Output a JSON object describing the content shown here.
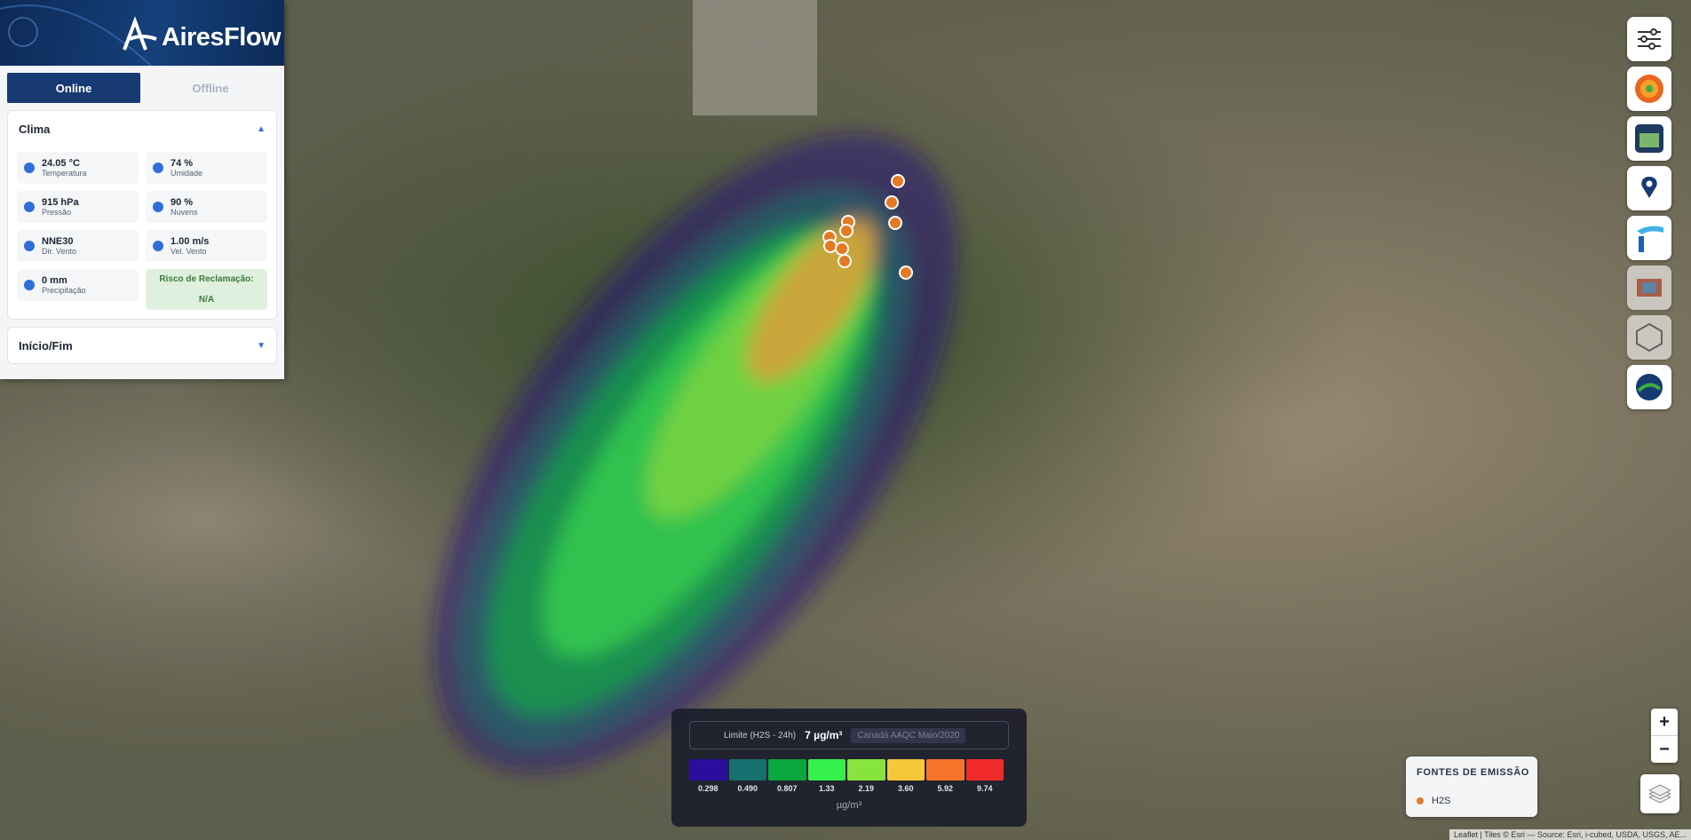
{
  "header": {
    "brand": "AiresFlow"
  },
  "tabs": [
    "Online",
    "Offline"
  ],
  "clima": {
    "title": "Clima",
    "items": [
      {
        "value": "24.05 °C",
        "label": "Temperatura"
      },
      {
        "value": "74 %",
        "label": "Umidade"
      },
      {
        "value": "915 hPa",
        "label": "Pressão"
      },
      {
        "value": "90 %",
        "label": "Nuvens"
      },
      {
        "value": "NNE30",
        "label": "Dir. Vento"
      },
      {
        "value": "1.00 m/s",
        "label": "Vel. Vento"
      },
      {
        "value": "0 mm",
        "label": "Precipitação"
      }
    ],
    "risk": {
      "label": "Risco de Reclamação:",
      "value": "N/A"
    }
  },
  "period": {
    "title": "Início/Fim"
  },
  "legend": {
    "limit_label": "Limite (H2S - 24h)",
    "limit_value": "7 µg/m³",
    "reference": "Canadá AAQC Maio/2020",
    "scale": [
      {
        "color": "#2a0f9e",
        "label": "0.298"
      },
      {
        "color": "#17706f",
        "label": "0.490"
      },
      {
        "color": "#0aa63e",
        "label": "0.807"
      },
      {
        "color": "#35f04a",
        "label": "1.33"
      },
      {
        "color": "#86e43c",
        "label": "2.19"
      },
      {
        "color": "#f4c83a",
        "label": "3.60"
      },
      {
        "color": "#f4752a",
        "label": "5.92"
      },
      {
        "color": "#f02a2a",
        "label": "9.74"
      }
    ],
    "unit": "µg/m³"
  },
  "emission": {
    "title": "FONTES DE EMISSÃO",
    "items": [
      "H2S"
    ]
  },
  "zoom": {
    "in": "+",
    "out": "−"
  },
  "attribution": "Leaflet | Tiles © Esri — Source: Esri, i-cubed, USDA, USGS, AE..."
}
